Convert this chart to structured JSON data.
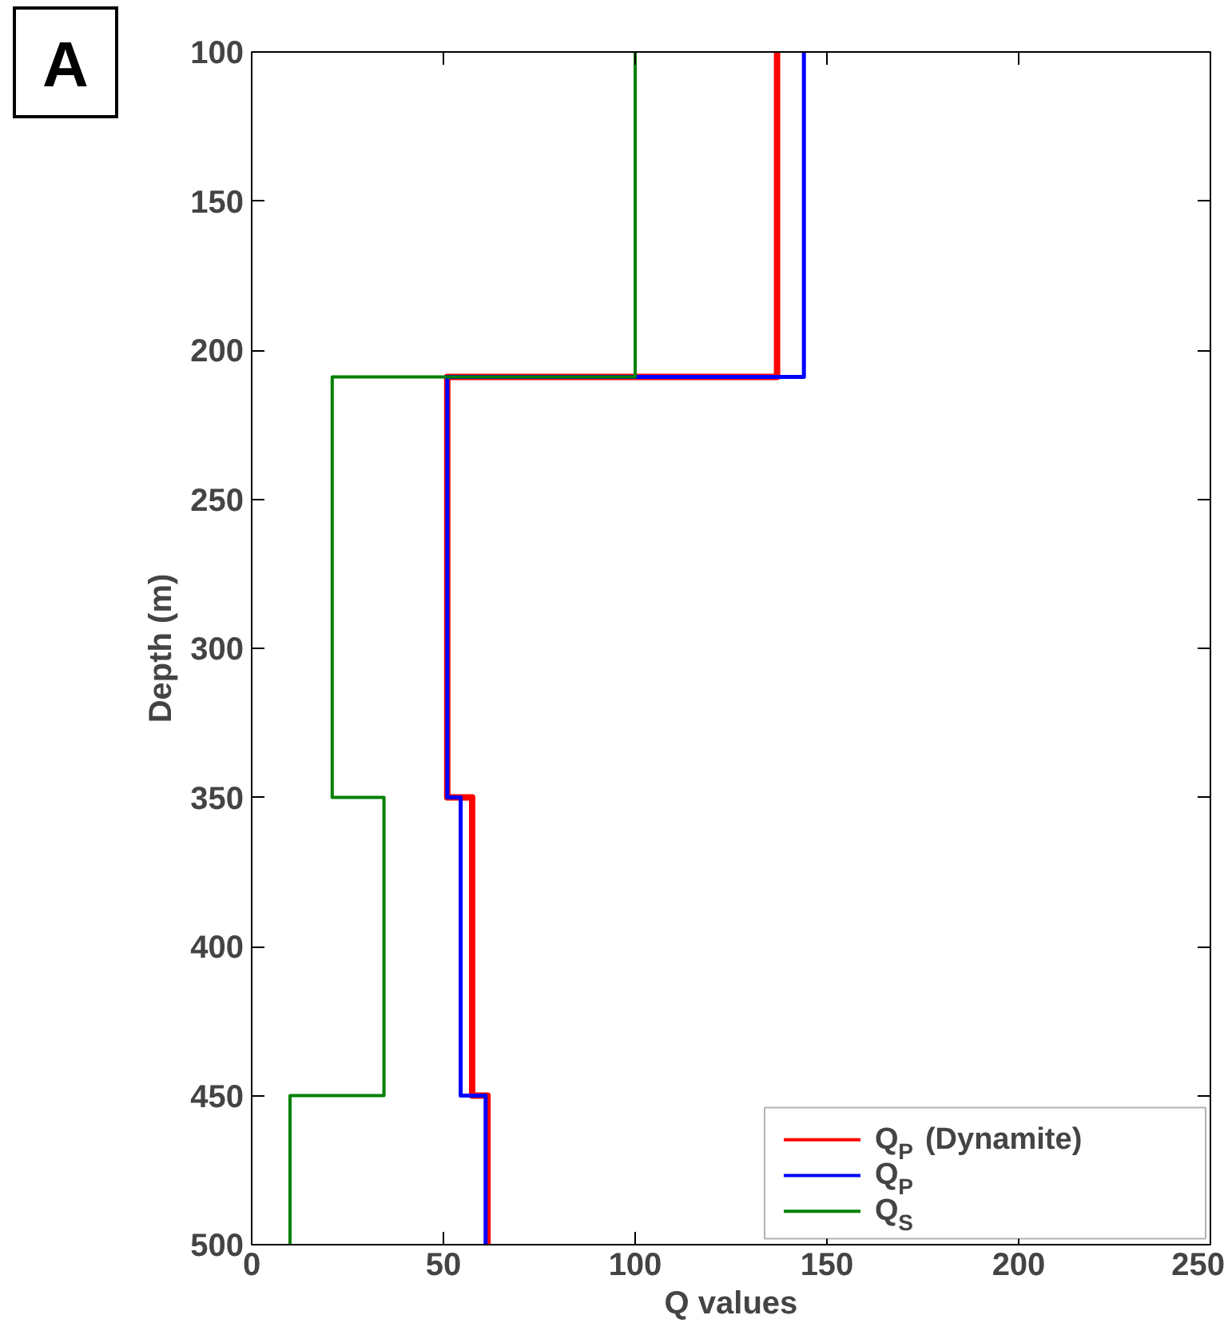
{
  "chart_data": {
    "type": "line",
    "xlabel": "Q values",
    "ylabel": "Depth (m)",
    "annotations": [
      "A"
    ],
    "xlim": [
      0,
      250
    ],
    "xticks": [
      0,
      50,
      100,
      150,
      200,
      250
    ],
    "ylim": [
      500,
      100
    ],
    "yticks": [
      100,
      150,
      200,
      250,
      300,
      350,
      400,
      450,
      500
    ],
    "grid": false,
    "legend": "bottom right",
    "marker": "none",
    "line_style": "solid",
    "series": [
      {
        "name": "Q$_{P}$ (Dynamite)",
        "color": "#ff0000",
        "x": [
          137,
          137,
          51,
          51,
          57.5,
          57.5,
          61.5,
          61.5
        ],
        "values": [
          100,
          209,
          209,
          350,
          350,
          450,
          450,
          500
        ]
      },
      {
        "name": "Q$_{P}$",
        "color": "#0000ff",
        "x": [
          144,
          144,
          51,
          51,
          54.5,
          54.5,
          61,
          61
        ],
        "values": [
          100,
          209,
          209,
          350,
          350,
          450,
          450,
          500
        ]
      },
      {
        "name": "Q$_{S}$",
        "color": "#008000",
        "x": [
          100,
          100,
          21,
          21,
          34.5,
          34.5,
          10,
          10
        ],
        "values": [
          100,
          209,
          209,
          350,
          350,
          450,
          450,
          500
        ]
      }
    ]
  }
}
